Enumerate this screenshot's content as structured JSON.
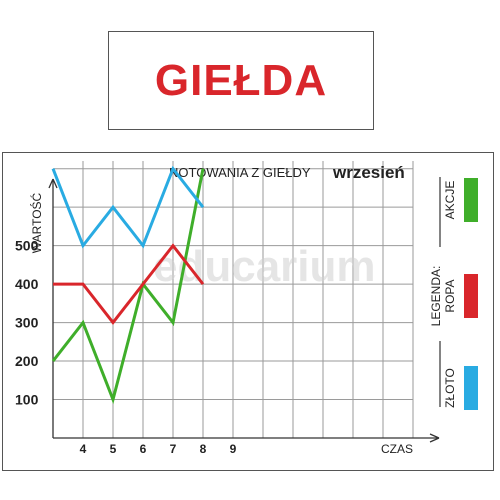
{
  "heading": "GIEŁDA",
  "watermark": "educarium",
  "chart_data": {
    "type": "line",
    "title": "NOTOWANIA Z GIEŁDY",
    "subtitle": "wrzesień",
    "xlabel": "CZAS",
    "ylabel": "WARTOŚĆ",
    "x_ticks": [
      "4",
      "5",
      "6",
      "7",
      "8",
      "9"
    ],
    "y_ticks": [
      "100",
      "200",
      "300",
      "400",
      "500"
    ],
    "xlim": [
      3,
      15
    ],
    "ylim": [
      0,
      720
    ],
    "grid": true,
    "legend_title": "LEGENDA:",
    "series": [
      {
        "name": "AKCJE",
        "color": "#3fae2a",
        "x": [
          3,
          4,
          5,
          6,
          7,
          8
        ],
        "y": [
          200,
          300,
          100,
          400,
          300,
          700
        ]
      },
      {
        "name": "ROPA",
        "color": "#d9262b",
        "x": [
          3,
          4,
          5,
          6,
          7,
          8
        ],
        "y": [
          400,
          400,
          300,
          400,
          500,
          400
        ]
      },
      {
        "name": "ZŁOTO",
        "color": "#29abe2",
        "x": [
          3,
          4,
          5,
          6,
          7,
          8
        ],
        "y": [
          700,
          500,
          600,
          500,
          700,
          600
        ]
      }
    ]
  }
}
